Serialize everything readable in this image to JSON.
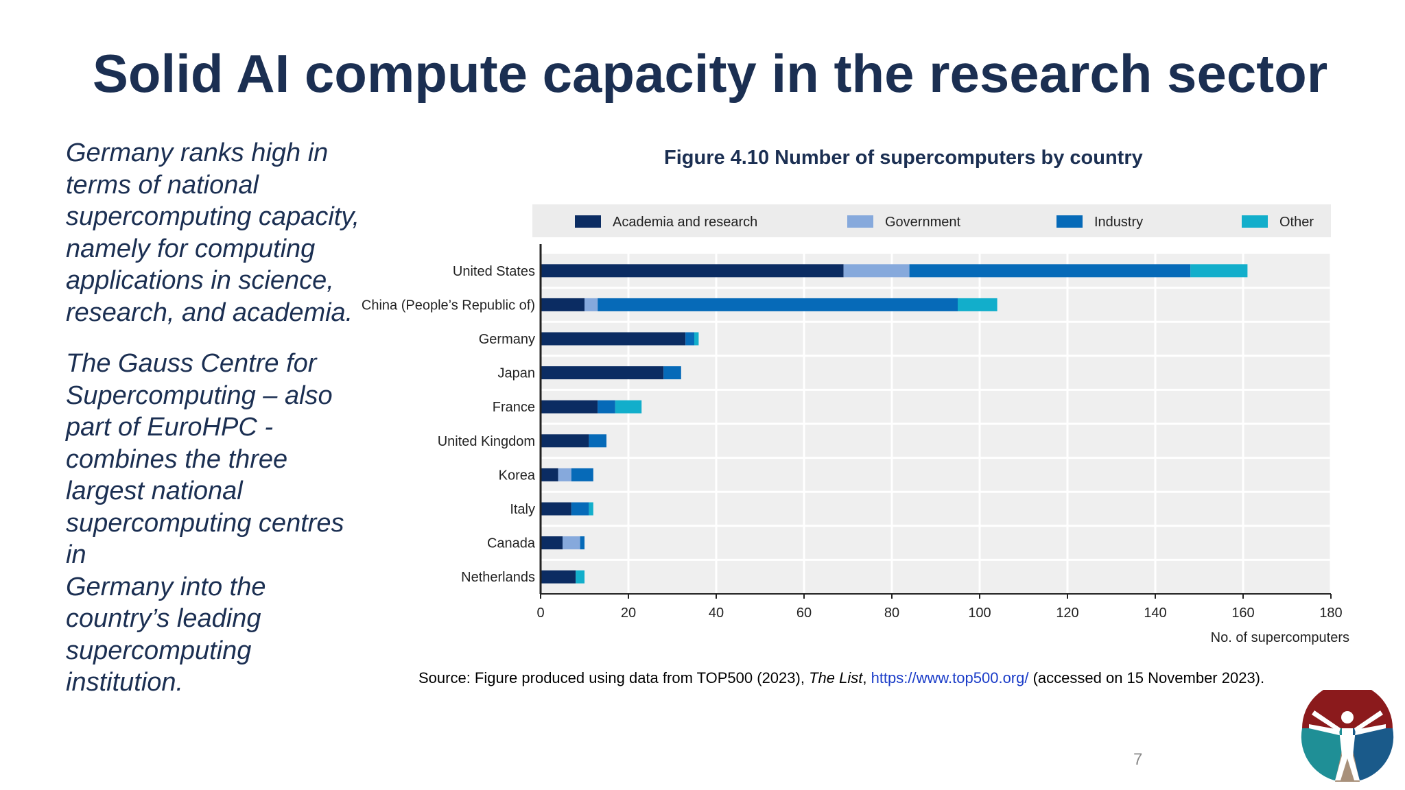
{
  "slide": {
    "title": "Solid AI compute capacity in the research sector",
    "body_paragraph_1": "Germany ranks high in\nterms of national\nsupercomputing capacity,\nnamely for computing\napplications in science,\nresearch, and academia.",
    "body_paragraph_2": "The Gauss Centre for\nSupercomputing – also\npart of EuroHPC -\ncombines the three\nlargest national\nsupercomputing centres\nin\nGermany into the\ncountry’s leading\nsupercomputing\ninstitution.",
    "page_number": "7"
  },
  "figure": {
    "title": "Figure 4.10 Number of supercomputers by country"
  },
  "source": {
    "prefix": "Source: Figure produced using data from TOP500 (2023), ",
    "italic": "The List",
    "sep": ", ",
    "link": "https://www.top500.org/",
    "suffix": " (accessed on 15 November 2023)."
  },
  "chart_data": {
    "type": "bar",
    "orientation": "horizontal",
    "stacked": true,
    "categories": [
      "United States",
      "China (People’s Republic of)",
      "Germany",
      "Japan",
      "France",
      "United Kingdom",
      "Korea",
      "Italy",
      "Canada",
      "Netherlands"
    ],
    "series": [
      {
        "name": "Academia and research",
        "color": "#0b2c62",
        "values": [
          69,
          10,
          33,
          28,
          13,
          11,
          4,
          7,
          5,
          8
        ]
      },
      {
        "name": "Government",
        "color": "#86a9dc",
        "values": [
          15,
          3,
          0,
          0,
          0,
          0,
          3,
          0,
          4,
          0
        ]
      },
      {
        "name": "Industry",
        "color": "#066ab8",
        "values": [
          64,
          82,
          2,
          4,
          4,
          4,
          5,
          4,
          1,
          0
        ]
      },
      {
        "name": "Other",
        "color": "#12aecb",
        "values": [
          13,
          9,
          1,
          0,
          6,
          0,
          0,
          1,
          0,
          2
        ]
      }
    ],
    "xlim": [
      0,
      180
    ],
    "xticks": [
      0,
      20,
      40,
      60,
      80,
      100,
      120,
      140,
      160,
      180
    ],
    "xlabel": "No. of supercomputers",
    "ylabel": "",
    "grid": true,
    "legend_position": "top"
  },
  "colors": {
    "title": "#1b2f52",
    "plot_background": "#efefef",
    "legend_background": "#ececec",
    "link": "#1a3cc8"
  },
  "logo": {
    "icon": "vitruvian-figure-icon",
    "colors": [
      "#8b1a1c",
      "#1f8f96",
      "#1a5a8a",
      "#a8907a"
    ]
  }
}
